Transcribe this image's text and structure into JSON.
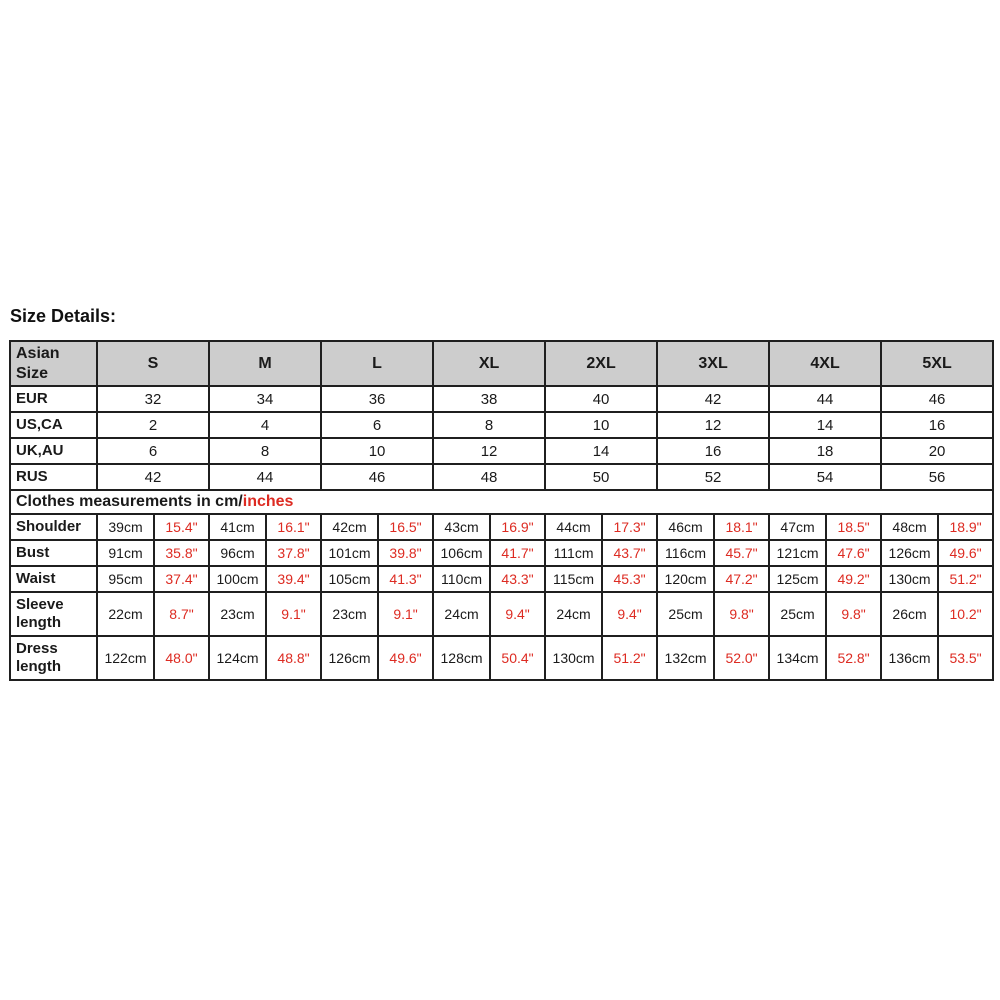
{
  "page": {
    "title": "Size Details:"
  },
  "size_chart": {
    "colors": {
      "inches_red": "#dd2b22",
      "header_bg": "#cdcdcd",
      "border": "#1f1f1f",
      "text": "#1a1a1a"
    },
    "header": {
      "label": "Asian Size",
      "sizes": [
        "S",
        "M",
        "L",
        "XL",
        "2XL",
        "3XL",
        "4XL",
        "5XL"
      ]
    },
    "conversion_rows": [
      {
        "label": "EUR",
        "values": [
          "32",
          "34",
          "36",
          "38",
          "40",
          "42",
          "44",
          "46"
        ]
      },
      {
        "label": "US,CA",
        "values": [
          "2",
          "4",
          "6",
          "8",
          "10",
          "12",
          "14",
          "16"
        ]
      },
      {
        "label": "UK,AU",
        "values": [
          "6",
          "8",
          "10",
          "12",
          "14",
          "16",
          "18",
          "20"
        ]
      },
      {
        "label": "RUS",
        "values": [
          "42",
          "44",
          "46",
          "48",
          "50",
          "52",
          "54",
          "56"
        ]
      }
    ],
    "note": {
      "black": "Clothes measurements in cm/",
      "red": "inches"
    },
    "measurement_rows": [
      {
        "label": "Shoulder",
        "cm": [
          "39cm",
          "41cm",
          "42cm",
          "43cm",
          "44cm",
          "46cm",
          "47cm",
          "48cm"
        ],
        "inches": [
          "15.4\"",
          "16.1\"",
          "16.5\"",
          "16.9\"",
          "17.3\"",
          "18.1\"",
          "18.5\"",
          "18.9\""
        ]
      },
      {
        "label": "Bust",
        "cm": [
          "91cm",
          "96cm",
          "101cm",
          "106cm",
          "111cm",
          "116cm",
          "121cm",
          "126cm"
        ],
        "inches": [
          "35.8\"",
          "37.8\"",
          "39.8\"",
          "41.7\"",
          "43.7\"",
          "45.7\"",
          "47.6\"",
          "49.6\""
        ]
      },
      {
        "label": "Waist",
        "cm": [
          "95cm",
          "100cm",
          "105cm",
          "110cm",
          "115cm",
          "120cm",
          "125cm",
          "130cm"
        ],
        "inches": [
          "37.4\"",
          "39.4\"",
          "41.3\"",
          "43.3\"",
          "45.3\"",
          "47.2\"",
          "49.2\"",
          "51.2\""
        ]
      },
      {
        "label": "Sleeve length",
        "cm": [
          "22cm",
          "23cm",
          "23cm",
          "24cm",
          "24cm",
          "25cm",
          "25cm",
          "26cm"
        ],
        "inches": [
          "8.7\"",
          "9.1\"",
          "9.1\"",
          "9.4\"",
          "9.4\"",
          "9.8\"",
          "9.8\"",
          "10.2\""
        ]
      },
      {
        "label": "Dress length",
        "cm": [
          "122cm",
          "124cm",
          "126cm",
          "128cm",
          "130cm",
          "132cm",
          "134cm",
          "136cm"
        ],
        "inches": [
          "48.0\"",
          "48.8\"",
          "49.6\"",
          "50.4\"",
          "51.2\"",
          "52.0\"",
          "52.8\"",
          "53.5\""
        ]
      }
    ]
  }
}
